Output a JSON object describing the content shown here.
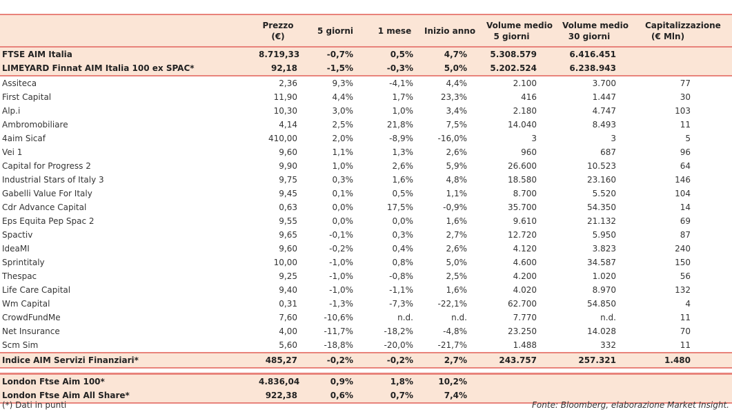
{
  "headers": [
    "",
    "Prezzo\n(€)",
    "5 giorni",
    "1 mese",
    "Inizio anno",
    "Volume medio\n5 giorni",
    "Volume medio\n30 giorni",
    "Capitalizzazione\n(€ Mln)"
  ],
  "top_rows": [
    [
      "FTSE AIM Italia",
      "8.719,33",
      "-0,7%",
      "0,5%",
      "4,7%",
      "5.308.579",
      "6.416.451",
      ""
    ],
    [
      "LIMEYARD Finnat AIM Italia 100 ex SPAC*",
      "92,18",
      "-1,5%",
      "-0,3%",
      "5,0%",
      "5.202.524",
      "6.238.943",
      ""
    ]
  ],
  "rows": [
    [
      "Assiteca",
      "2,36",
      "9,3%",
      "-4,1%",
      "4,4%",
      "2.100",
      "3.700",
      "77"
    ],
    [
      "First Capital",
      "11,90",
      "4,4%",
      "1,7%",
      "23,3%",
      "416",
      "1.447",
      "30"
    ],
    [
      "Alp.i",
      "10,30",
      "3,0%",
      "1,0%",
      "3,4%",
      "2.180",
      "4.747",
      "103"
    ],
    [
      "Ambromobiliare",
      "4,14",
      "2,5%",
      "21,8%",
      "7,5%",
      "14.040",
      "8.493",
      "11"
    ],
    [
      "4aim Sicaf",
      "410,00",
      "2,0%",
      "-8,9%",
      "-16,0%",
      "3",
      "3",
      "5"
    ],
    [
      "Vei 1",
      "9,60",
      "1,1%",
      "1,3%",
      "2,6%",
      "960",
      "687",
      "96"
    ],
    [
      "Capital for Progress 2",
      "9,90",
      "1,0%",
      "2,6%",
      "5,9%",
      "26.600",
      "10.523",
      "64"
    ],
    [
      "Industrial Stars of Italy 3",
      "9,75",
      "0,3%",
      "1,6%",
      "4,8%",
      "18.580",
      "23.160",
      "146"
    ],
    [
      "Gabelli Value For Italy",
      "9,45",
      "0,1%",
      "0,5%",
      "1,1%",
      "8.700",
      "5.520",
      "104"
    ],
    [
      "Cdr Advance Capital",
      "0,63",
      "0,0%",
      "17,5%",
      "-0,9%",
      "35.700",
      "54.350",
      "14"
    ],
    [
      "Eps Equita Pep Spac 2",
      "9,55",
      "0,0%",
      "0,0%",
      "1,6%",
      "9.610",
      "21.132",
      "69"
    ],
    [
      "Spactiv",
      "9,65",
      "-0,1%",
      "0,3%",
      "2,7%",
      "12.720",
      "5.950",
      "87"
    ],
    [
      "IdeaMI",
      "9,60",
      "-0,2%",
      "0,4%",
      "2,6%",
      "4.120",
      "3.823",
      "240"
    ],
    [
      "Sprintitaly",
      "10,00",
      "-1,0%",
      "0,8%",
      "5,0%",
      "4.600",
      "34.587",
      "150"
    ],
    [
      "Thespac",
      "9,25",
      "-1,0%",
      "-0,8%",
      "2,5%",
      "4.200",
      "1.020",
      "56"
    ],
    [
      "Life Care Capital",
      "9,40",
      "-1,0%",
      "-1,1%",
      "1,6%",
      "4.020",
      "8.970",
      "132"
    ],
    [
      "Wm Capital",
      "0,31",
      "-1,3%",
      "-7,3%",
      "-22,1%",
      "62.700",
      "54.850",
      "4"
    ],
    [
      "CrowdFundMe",
      "7,60",
      "-10,6%",
      "n.d.",
      "n.d.",
      "7.770",
      "n.d.",
      "11"
    ],
    [
      "Net Insurance",
      "4,00",
      "-11,7%",
      "-18,2%",
      "-4,8%",
      "23.250",
      "14.028",
      "70"
    ],
    [
      "Scm Sim",
      "5,60",
      "-18,8%",
      "-20,0%",
      "-21,7%",
      "1.488",
      "332",
      "11"
    ]
  ],
  "index_row": [
    "Indice AIM Servizi Finanziari*",
    "485,27",
    "-0,2%",
    "-0,2%",
    "2,7%",
    "243.757",
    "257.321",
    "1.480"
  ],
  "london_rows": [
    [
      "London Ftse Aim 100*",
      "4.836,04",
      "0,9%",
      "1,8%",
      "10,2%",
      "",
      "",
      ""
    ],
    [
      "London Ftse Aim All Share*",
      "922,38",
      "0,6%",
      "0,7%",
      "7,4%",
      "",
      "",
      ""
    ]
  ],
  "footer": {
    "note": "(*) Dati in punti",
    "source": "Fonte: Bloomberg, elaborazione Market Insight."
  }
}
